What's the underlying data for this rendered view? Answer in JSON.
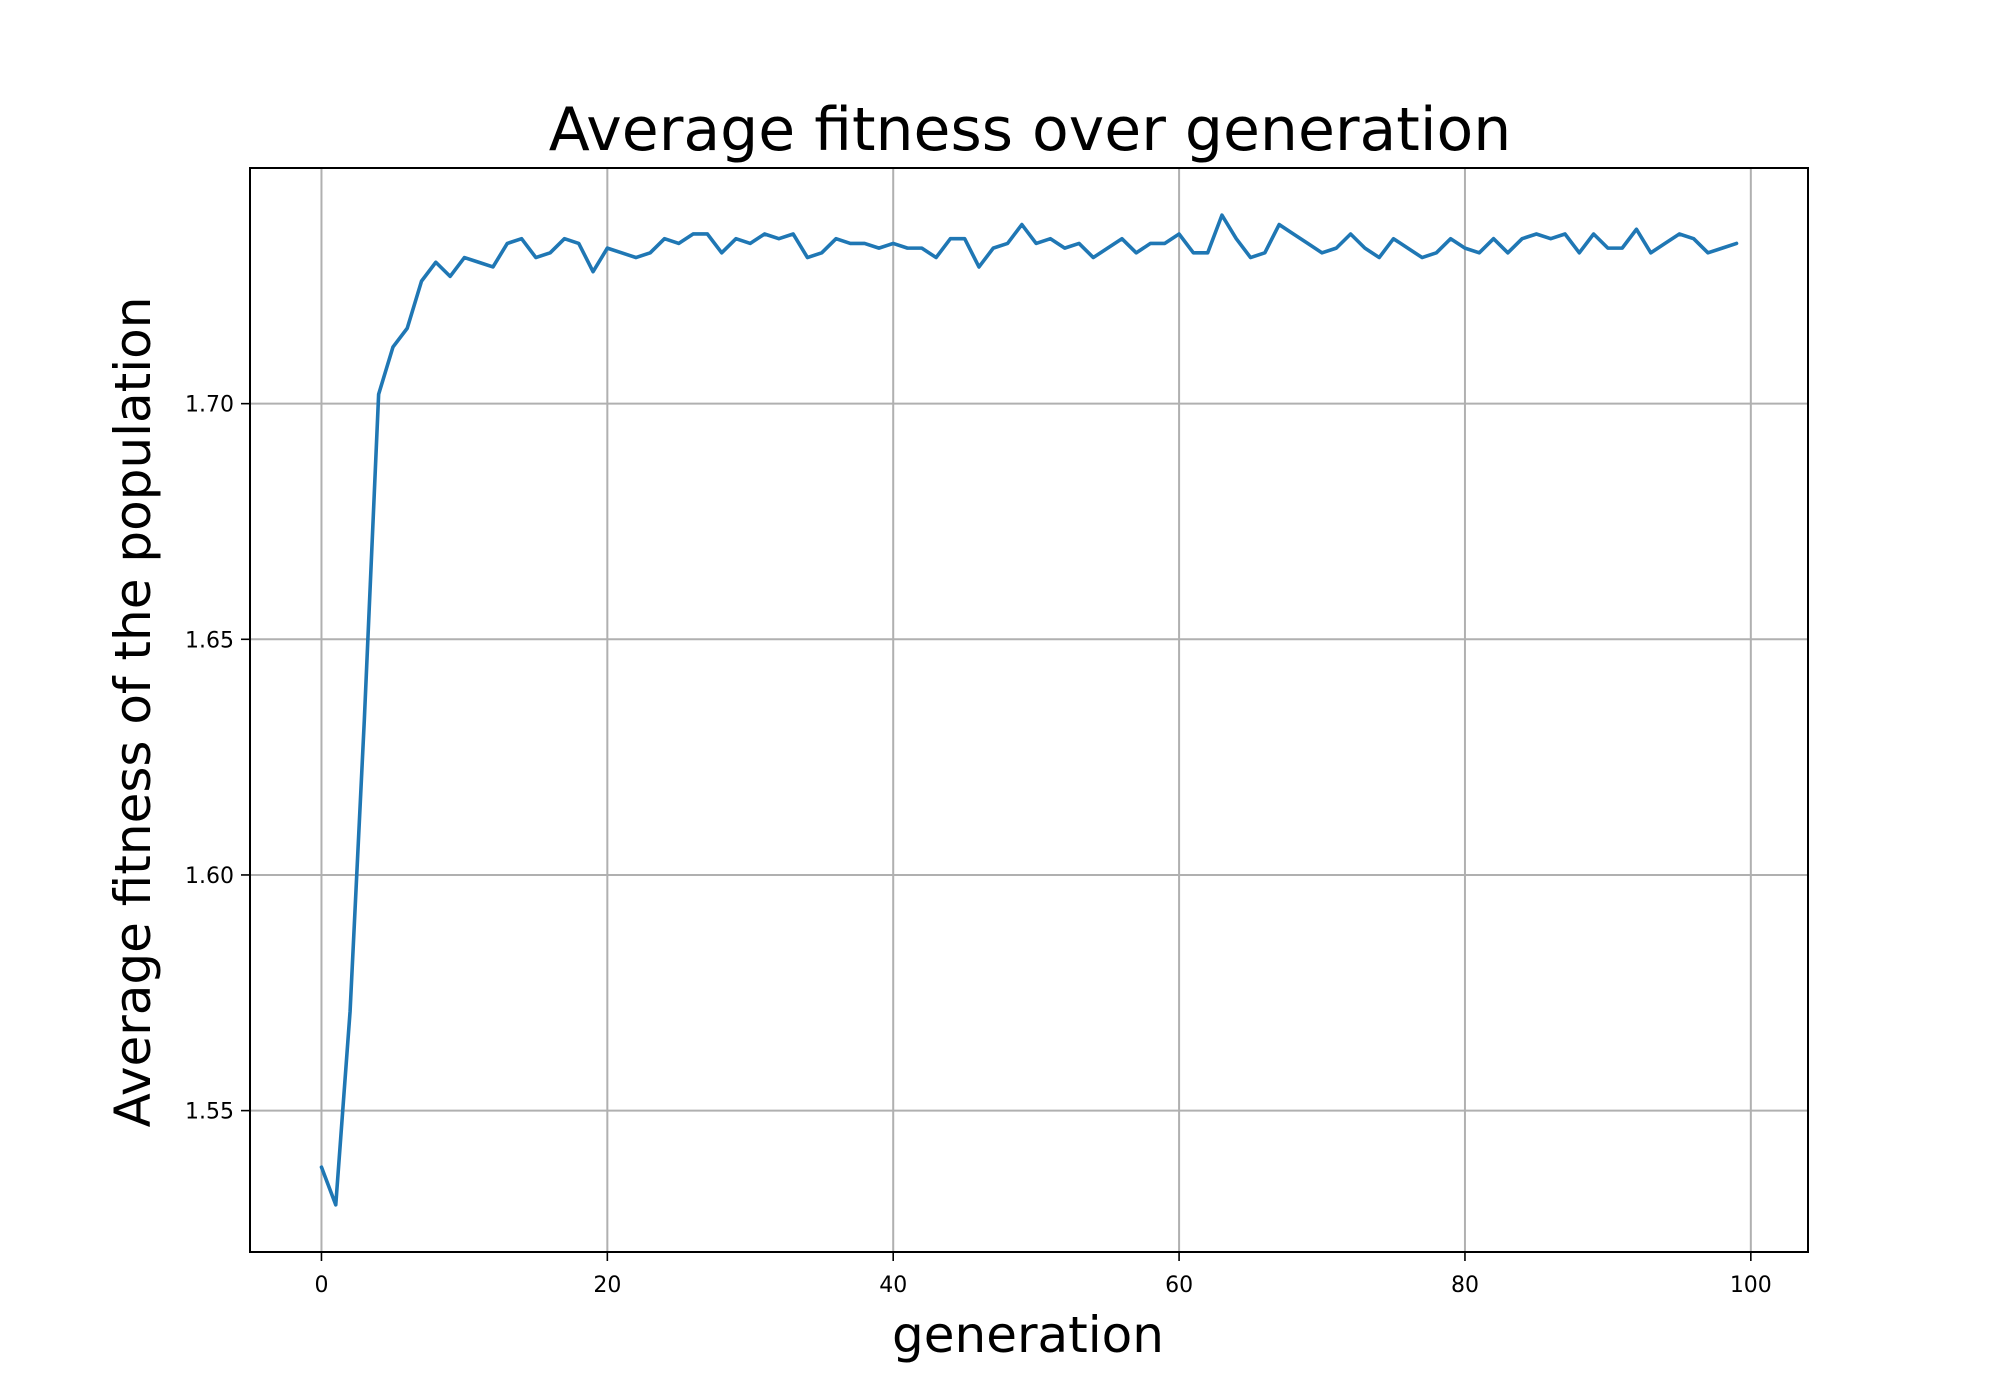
{
  "chart_data": {
    "type": "line",
    "title": "Average fitness over generation",
    "xlabel": "generation",
    "ylabel": "Average fitness of the population",
    "xlim": [
      -5,
      104
    ],
    "ylim": [
      1.52,
      1.75
    ],
    "xticks": [
      0,
      20,
      40,
      60,
      80,
      100
    ],
    "xtick_labels": [
      "0",
      "20",
      "40",
      "60",
      "80",
      "100"
    ],
    "yticks": [
      1.55,
      1.6,
      1.65,
      1.7
    ],
    "ytick_labels": [
      "1.55",
      "1.60",
      "1.65",
      "1.70"
    ],
    "grid": true,
    "line_color": "#1f77b4",
    "series": [
      {
        "x": [
          0,
          1,
          2,
          3,
          4,
          5,
          6,
          7,
          8,
          9,
          10,
          11,
          12,
          13,
          14,
          15,
          16,
          17,
          18,
          19,
          20,
          21,
          22,
          23,
          24,
          25,
          26,
          27,
          28,
          29,
          30,
          31,
          32,
          33,
          34,
          35,
          36,
          37,
          38,
          39,
          40,
          41,
          42,
          43,
          44,
          45,
          46,
          47,
          48,
          49,
          50,
          51,
          52,
          53,
          54,
          55,
          56,
          57,
          58,
          59,
          60,
          61,
          62,
          63,
          64,
          65,
          66,
          67,
          68,
          69,
          70,
          71,
          72,
          73,
          74,
          75,
          76,
          77,
          78,
          79,
          80,
          81,
          82,
          83,
          84,
          85,
          86,
          87,
          88,
          89,
          90,
          91,
          92,
          93,
          94,
          95,
          96,
          97,
          98,
          99
        ],
        "values": [
          1.538,
          1.53,
          1.571,
          1.633,
          1.702,
          1.712,
          1.716,
          1.726,
          1.73,
          1.727,
          1.731,
          1.73,
          1.729,
          1.734,
          1.735,
          1.731,
          1.732,
          1.735,
          1.734,
          1.728,
          1.733,
          1.732,
          1.731,
          1.732,
          1.735,
          1.734,
          1.736,
          1.736,
          1.732,
          1.735,
          1.734,
          1.736,
          1.735,
          1.736,
          1.731,
          1.732,
          1.735,
          1.734,
          1.734,
          1.733,
          1.734,
          1.733,
          1.733,
          1.731,
          1.735,
          1.735,
          1.729,
          1.733,
          1.734,
          1.738,
          1.734,
          1.735,
          1.733,
          1.734,
          1.731,
          1.733,
          1.735,
          1.732,
          1.734,
          1.734,
          1.736,
          1.732,
          1.732,
          1.74,
          1.735,
          1.731,
          1.732,
          1.738,
          1.736,
          1.734,
          1.732,
          1.733,
          1.736,
          1.733,
          1.731,
          1.735,
          1.733,
          1.731,
          1.732,
          1.735,
          1.733,
          1.732,
          1.735,
          1.732,
          1.735,
          1.736,
          1.735,
          1.736,
          1.732,
          1.736,
          1.733,
          1.733,
          1.737,
          1.732,
          1.734,
          1.736,
          1.735,
          1.732,
          1.733,
          1.734
        ]
      }
    ]
  }
}
